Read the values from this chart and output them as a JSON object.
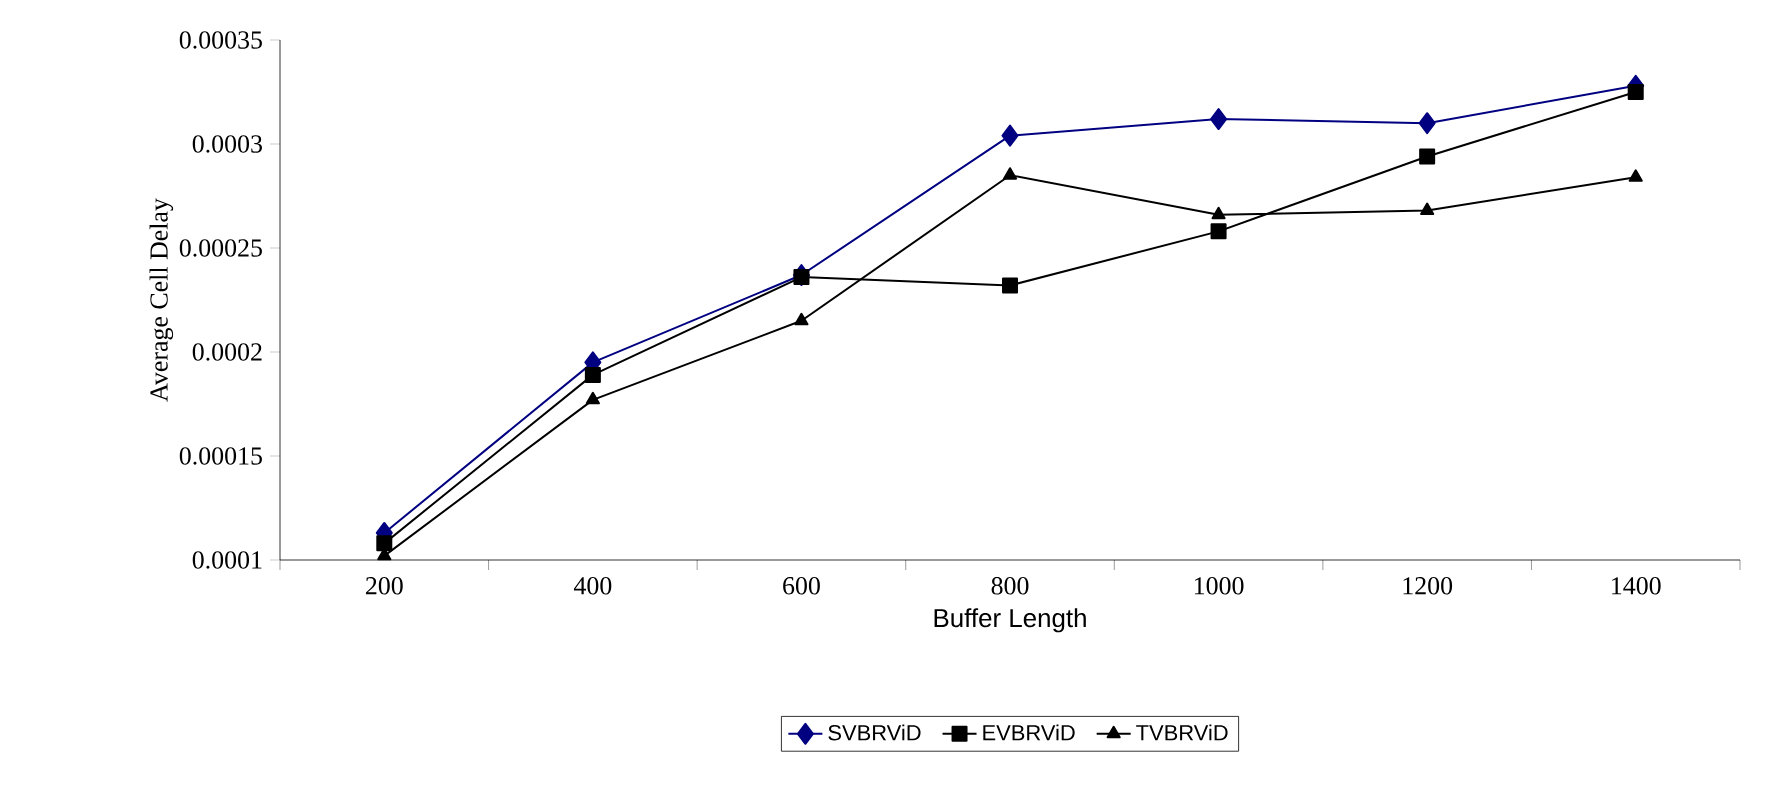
{
  "chart_data": {
    "type": "line",
    "xlabel": "Buffer Length",
    "ylabel": "Average Cell Delay",
    "categories": [
      "200",
      "400",
      "600",
      "800",
      "1000",
      "1200",
      "1400"
    ],
    "series": [
      {
        "name": "SVBRViD",
        "color": "#000080",
        "marker": "diamond",
        "values": [
          0.000113,
          0.000195,
          0.000237,
          0.000304,
          0.000312,
          0.00031,
          0.000328
        ]
      },
      {
        "name": "EVBRViD",
        "color": "#000000",
        "marker": "square",
        "values": [
          0.000108,
          0.000189,
          0.000236,
          0.000232,
          0.000258,
          0.000294,
          0.000325
        ]
      },
      {
        "name": "TVBRViD",
        "color": "#000000",
        "marker": "triangle",
        "values": [
          0.000102,
          0.000177,
          0.000215,
          0.000285,
          0.000266,
          0.000268,
          0.000284
        ]
      }
    ],
    "ylim": [
      0.0001,
      0.00035
    ],
    "yticks": [
      0.0001,
      0.00015,
      0.0002,
      0.00025,
      0.0003,
      0.00035
    ],
    "grid": false,
    "legend": "bottom",
    "line_style": "solid"
  }
}
